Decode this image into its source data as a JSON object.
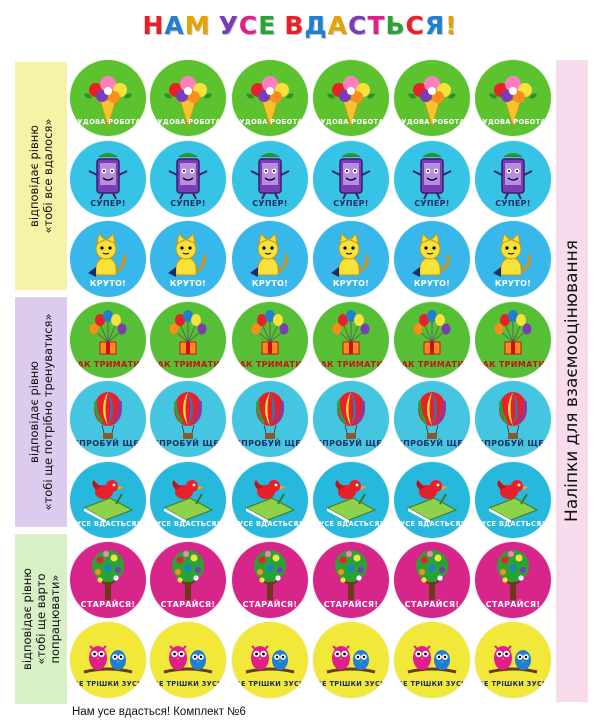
{
  "title": {
    "text": "НАМ УСЕ ВДАСТЬСЯ!",
    "letter_colors": [
      "#e8202a",
      "#1f7fd0",
      "#e6a300",
      "#ffffff",
      "#7a3db5",
      "#e01e8c",
      "#2aa336",
      "#ffffff",
      "#e8202a",
      "#1f7fd0",
      "#e6a300",
      "#7a3db5",
      "#e01e8c",
      "#2aa336",
      "#e8202a",
      "#1f7fd0",
      "#e6a300"
    ]
  },
  "side_labels": [
    {
      "line1": "відповідає рівню",
      "line2": "«тобі все вдалося»",
      "color": "#f6f3a6"
    },
    {
      "line1": "відповідає рівню",
      "line2": "«тобі ще потрібно тренуватися»",
      "color": "#dccbef"
    },
    {
      "line1": "відповідає рівню",
      "line2": "«тобі ще варто",
      "line3": "попрацювати»",
      "color": "#d7f0c6"
    }
  ],
  "right_label": "Наліпки для взаємооцінювання",
  "rows": [
    {
      "caption": "ЧУДОВА РОБОТА!",
      "bg": "#5cc22e",
      "caption_color": "#ffffff",
      "art": "bouquet-icon",
      "caption_pos": "bottom"
    },
    {
      "caption": "СУПЕР!",
      "bg": "#37c3e6",
      "caption_color": "#1c2f66",
      "art": "phone-icon",
      "caption_pos": "bottom"
    },
    {
      "caption": "КРУТО!",
      "bg": "#37b7ea",
      "caption_color": "#ffffff",
      "art": "cat-icon",
      "caption_pos": "bottom"
    },
    {
      "caption": "ТАК ТРИМАТИ!",
      "bg": "#57bf35",
      "caption_color": "#c4141a",
      "art": "balloons-icon",
      "caption_pos": "bottom"
    },
    {
      "caption": "СПРОБУЙ ЩЕ!",
      "bg": "#45c6e0",
      "caption_color": "#1c2f66",
      "art": "hot-air-balloon-icon",
      "caption_pos": "bottom"
    },
    {
      "caption": "УСЕ ВДАСТЬСЯ!",
      "bg": "#27b8de",
      "caption_color": "#ffffff",
      "art": "bird-book-icon",
      "caption_pos": "bottom"
    },
    {
      "caption": "СТАРАЙСЯ!",
      "bg": "#d7258a",
      "caption_color": "#ffffff",
      "art": "tree-icon",
      "caption_pos": "bottom"
    },
    {
      "caption": "ЩЕ ТРІШКИ ЗУСИЛЬ!",
      "bg": "#f1e83a",
      "caption_color": "#1c2f66",
      "art": "owls-icon",
      "caption_pos": "bottom"
    }
  ],
  "footer": "Нам усе вдасться! Комплект №6"
}
